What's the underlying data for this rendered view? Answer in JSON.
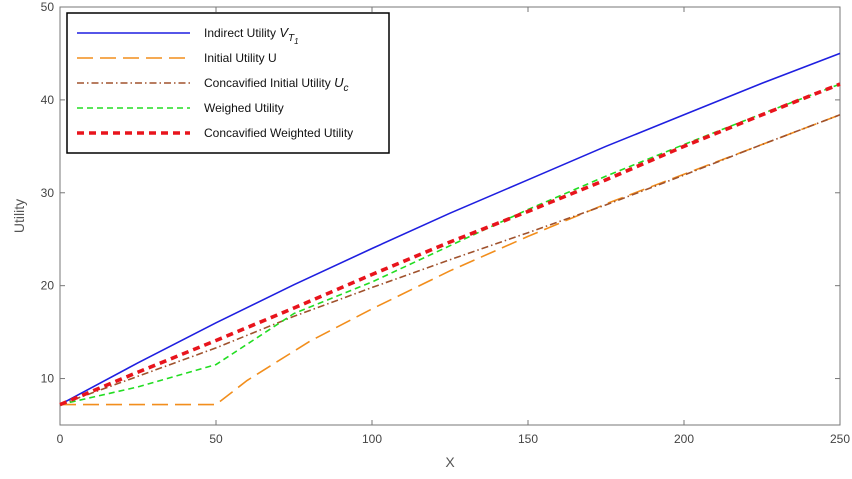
{
  "chart_data": {
    "type": "line",
    "xlabel": "X",
    "ylabel": "Utility",
    "xlim": [
      0,
      250
    ],
    "ylim": [
      5,
      50
    ],
    "xticks": [
      0,
      50,
      100,
      150,
      200,
      250
    ],
    "yticks": [
      10,
      20,
      30,
      40,
      50
    ],
    "grid": false,
    "legend_position": "top-left",
    "series": [
      {
        "name": "Indirect Utility V",
        "name_subscript": "T",
        "name_subscript2": "1",
        "color": "#1f1fe0",
        "style": "solid",
        "x": [
          0,
          25,
          50,
          75,
          100,
          125,
          150,
          175,
          200,
          225,
          250
        ],
        "y": [
          7.2,
          11.7,
          16.0,
          20.1,
          24.0,
          27.8,
          31.4,
          35.0,
          38.4,
          41.8,
          45.0
        ]
      },
      {
        "name": "Initial Utility U",
        "color": "#f28e1c",
        "style": "longdash",
        "x": [
          0,
          50,
          60,
          80,
          100,
          125,
          150,
          175,
          200,
          225,
          250
        ],
        "y": [
          7.2,
          7.2,
          9.8,
          14.0,
          17.5,
          21.6,
          25.3,
          28.8,
          32.0,
          35.2,
          38.4
        ]
      },
      {
        "name": "Concavified Initial Utility U",
        "name_subscript": "c",
        "color": "#a0522d",
        "style": "dashdot",
        "x": [
          0,
          50,
          75,
          100,
          125,
          150,
          175,
          200,
          225,
          250
        ],
        "y": [
          7.2,
          13.3,
          16.7,
          19.8,
          22.8,
          25.7,
          28.7,
          31.9,
          35.2,
          38.4
        ]
      },
      {
        "name": "Weighed Utility",
        "color": "#22dd22",
        "style": "dashed",
        "x": [
          0,
          25,
          50,
          75,
          100,
          125,
          150,
          175,
          200,
          225,
          250
        ],
        "y": [
          7.2,
          9.1,
          11.5,
          17.0,
          20.4,
          24.3,
          28.2,
          31.8,
          35.2,
          38.5,
          41.7
        ]
      },
      {
        "name": "Concavified Weighted Utility",
        "color": "#e8141c",
        "style": "thickdashed",
        "x": [
          0,
          25,
          50,
          75,
          100,
          125,
          150,
          175,
          200,
          225,
          250
        ],
        "y": [
          7.2,
          10.7,
          14.1,
          17.6,
          21.2,
          24.7,
          28.0,
          31.4,
          35.0,
          38.4,
          41.7
        ]
      }
    ]
  }
}
